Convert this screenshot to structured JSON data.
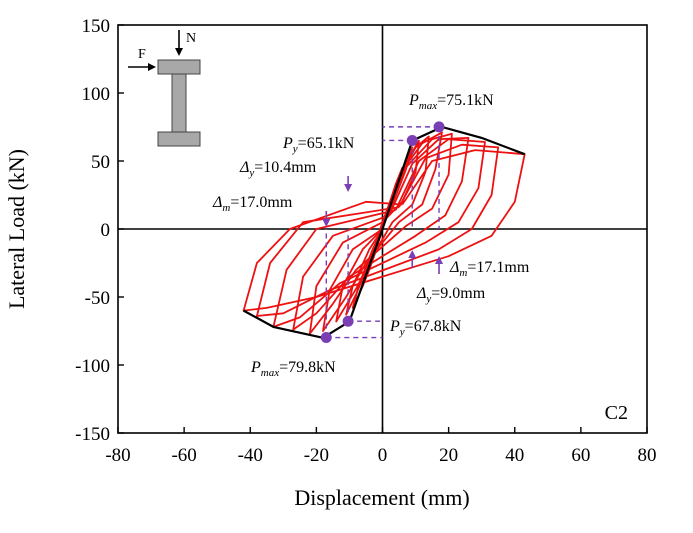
{
  "chart_data": {
    "type": "line",
    "xlabel": "Displacement (mm)",
    "ylabel": "Lateral Load (kN)",
    "xlim": [
      -80,
      80
    ],
    "ylim": [
      -150,
      150
    ],
    "xticks": [
      -80,
      -60,
      -40,
      -20,
      0,
      20,
      40,
      60,
      80
    ],
    "yticks": [
      -150,
      -100,
      -50,
      0,
      50,
      100,
      150
    ],
    "xtick_labels": [
      "-80",
      "-60",
      "-40",
      "-20",
      "0",
      "20",
      "40",
      "60",
      "80"
    ],
    "ytick_labels": [
      "-150",
      "-100",
      "-50",
      "0",
      "50",
      "100",
      "150"
    ],
    "grid": false,
    "panel_label": "C2",
    "colors": {
      "hysteresis": "#ee1111",
      "envelope": "#000000",
      "points": "#7a3fb5",
      "annotation": "#7a3fb5"
    },
    "inset": {
      "load_F": "F",
      "load_N": "N"
    },
    "series": [
      {
        "role": "hysteresis-loops",
        "loops": [
          [
            [
              0,
              0
            ],
            [
              2,
              18
            ],
            [
              4,
              33
            ],
            [
              6,
              45
            ],
            [
              5,
              36
            ],
            [
              2,
              14
            ],
            [
              0,
              0
            ],
            [
              -2,
              -16
            ],
            [
              -4,
              -30
            ],
            [
              -6,
              -42
            ],
            [
              -5,
              -30
            ],
            [
              -2,
              -12
            ],
            [
              0,
              0
            ]
          ],
          [
            [
              0,
              0
            ],
            [
              3,
              25
            ],
            [
              6,
              44
            ],
            [
              9,
              60
            ],
            [
              7,
              43
            ],
            [
              3,
              18
            ],
            [
              0,
              2
            ],
            [
              -3,
              -22
            ],
            [
              -6,
              -42
            ],
            [
              -9,
              -58
            ],
            [
              -7,
              -40
            ],
            [
              -3,
              -15
            ],
            [
              0,
              0
            ]
          ],
          [
            [
              0,
              2
            ],
            [
              4,
              30
            ],
            [
              8,
              52
            ],
            [
              11,
              65
            ],
            [
              10,
              42
            ],
            [
              6,
              20
            ],
            [
              0,
              5
            ],
            [
              -4,
              -25
            ],
            [
              -8,
              -48
            ],
            [
              -11,
              -63
            ],
            [
              -9,
              -42
            ],
            [
              -4,
              -15
            ],
            [
              0,
              0
            ]
          ],
          [
            [
              0,
              5
            ],
            [
              5,
              38
            ],
            [
              10,
              60
            ],
            [
              14,
              68
            ],
            [
              13,
              42
            ],
            [
              9,
              18
            ],
            [
              3,
              5
            ],
            [
              -3,
              -20
            ],
            [
              -8,
              -44
            ],
            [
              -14,
              -68
            ],
            [
              -12,
              -42
            ],
            [
              -6,
              -15
            ],
            [
              0,
              0
            ]
          ],
          [
            [
              0,
              3
            ],
            [
              6,
              43
            ],
            [
              12,
              63
            ],
            [
              18,
              71
            ],
            [
              16,
              44
            ],
            [
              12,
              18
            ],
            [
              5,
              5
            ],
            [
              -5,
              -25
            ],
            [
              -11,
              -50
            ],
            [
              -18,
              -75
            ],
            [
              -16,
              -45
            ],
            [
              -9,
              -15
            ],
            [
              0,
              0
            ]
          ],
          [
            [
              0,
              5
            ],
            [
              7,
              45
            ],
            [
              15,
              66
            ],
            [
              21,
              70
            ],
            [
              20,
              40
            ],
            [
              15,
              15
            ],
            [
              7,
              2
            ],
            [
              -8,
              -30
            ],
            [
              -15,
              -55
            ],
            [
              -22,
              -77
            ],
            [
              -20,
              -42
            ],
            [
              -12,
              -10
            ],
            [
              0,
              5
            ]
          ],
          [
            [
              2,
              10
            ],
            [
              9,
              48
            ],
            [
              17,
              66
            ],
            [
              26,
              67
            ],
            [
              24,
              35
            ],
            [
              19,
              10
            ],
            [
              10,
              -5
            ],
            [
              -10,
              -35
            ],
            [
              -20,
              -62
            ],
            [
              -27,
              -74
            ],
            [
              -24,
              -35
            ],
            [
              -15,
              -5
            ],
            [
              2,
              10
            ]
          ],
          [
            [
              4,
              14
            ],
            [
              11,
              50
            ],
            [
              20,
              66
            ],
            [
              31,
              64
            ],
            [
              29,
              30
            ],
            [
              23,
              5
            ],
            [
              13,
              -10
            ],
            [
              -13,
              -40
            ],
            [
              -25,
              -65
            ],
            [
              -33,
              -72
            ],
            [
              -29,
              -30
            ],
            [
              -20,
              0
            ],
            [
              4,
              14
            ]
          ],
          [
            [
              5,
              16
            ],
            [
              13,
              52
            ],
            [
              24,
              62
            ],
            [
              35,
              60
            ],
            [
              33,
              25
            ],
            [
              27,
              0
            ],
            [
              17,
              -15
            ],
            [
              -16,
              -45
            ],
            [
              -30,
              -62
            ],
            [
              -38,
              -64
            ],
            [
              -34,
              -25
            ],
            [
              -24,
              5
            ],
            [
              5,
              16
            ]
          ],
          [
            [
              6,
              18
            ],
            [
              15,
              50
            ],
            [
              28,
              58
            ],
            [
              43,
              55
            ],
            [
              40,
              20
            ],
            [
              33,
              -5
            ],
            [
              20,
              -20
            ],
            [
              -20,
              -50
            ],
            [
              -35,
              -58
            ],
            [
              -42,
              -60
            ],
            [
              -38,
              -25
            ],
            [
              -28,
              0
            ],
            [
              -5,
              20
            ],
            [
              6,
              18
            ]
          ]
        ]
      },
      {
        "role": "envelope",
        "points": [
          [
            -42,
            -60
          ],
          [
            -33,
            -72
          ],
          [
            -18,
            -80
          ],
          [
            -10,
            -68
          ],
          [
            0,
            0
          ],
          [
            9,
            65
          ],
          [
            18,
            75
          ],
          [
            30,
            67
          ],
          [
            43,
            55
          ]
        ]
      }
    ],
    "points": [
      {
        "x": 17.1,
        "y": 75.1
      },
      {
        "x": 9.0,
        "y": 65.1
      },
      {
        "x": -10.4,
        "y": -67.8
      },
      {
        "x": -17.0,
        "y": -79.8
      }
    ],
    "annotations": {
      "pmax_pos": {
        "sym": "P",
        "sub": "max",
        "val": "=75.1kN"
      },
      "py_pos": {
        "sym": "P",
        "sub": "y",
        "val": "=65.1kN"
      },
      "dy_neg": {
        "sym": "Δ",
        "sub": "y",
        "val": "=10.4mm"
      },
      "dm_neg": {
        "sym": "Δ",
        "sub": "m",
        "val": "=17.0mm"
      },
      "dm_pos": {
        "sym": "Δ",
        "sub": "m",
        "val": "=17.1mm"
      },
      "dy_pos": {
        "sym": "Δ",
        "sub": "y",
        "val": "=9.0mm"
      },
      "py_neg": {
        "sym": "P",
        "sub": "y",
        "val": "=67.8kN"
      },
      "pmax_neg": {
        "sym": "P",
        "sub": "max",
        "val": "=79.8kN"
      }
    },
    "markers": {
      "guides": [
        {
          "x": 17.1,
          "y": 75.1
        },
        {
          "x": 9.0,
          "y": 65.1
        },
        {
          "x": -10.4,
          "y": -67.8
        },
        {
          "x": -17.0,
          "y": -79.8
        }
      ]
    }
  }
}
